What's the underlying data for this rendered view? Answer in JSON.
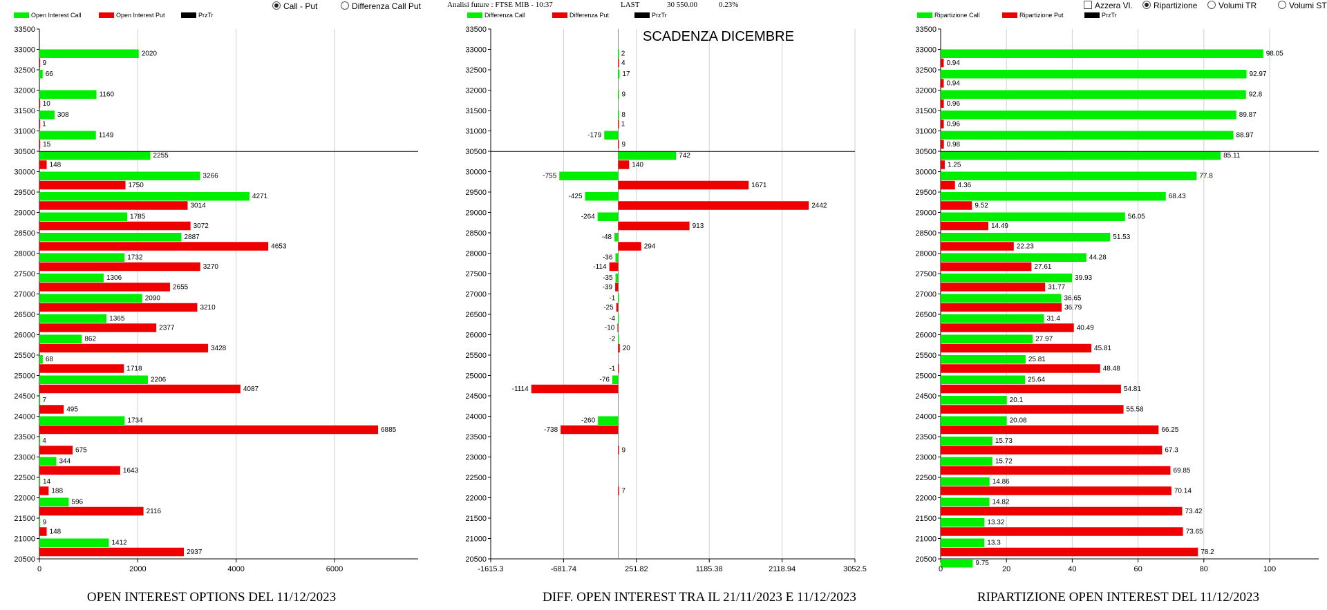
{
  "header": {
    "info_label": "Analisi future : FTSE MIB - 10:37",
    "last_label": "LAST",
    "last_value": "30 550.00",
    "last_change": "0.23%",
    "scadenza": "SCADENZA DICEMBRE"
  },
  "controls": {
    "call_put": "Call - Put",
    "diff_call_put": "Differenza Call Put",
    "azzera": "Azzera Vl.",
    "ripartizione": "Ripartizione",
    "volumi_tr": "Volumi TR",
    "volumi_st": "Volumi ST"
  },
  "colors": {
    "call": "#00ee00",
    "put": "#ee0000",
    "prz": "#000000",
    "grid": "#cfcfcf"
  },
  "strikes": [
    "33500",
    "33000",
    "32500",
    "32000",
    "31500",
    "31000",
    "30500",
    "30000",
    "29500",
    "29000",
    "28500",
    "28000",
    "27500",
    "27000",
    "26500",
    "26000",
    "25500",
    "25000",
    "24500",
    "24000",
    "23500",
    "23000",
    "22500",
    "22000",
    "21500",
    "21000",
    "20500"
  ],
  "chart_data": [
    {
      "type": "bar",
      "orientation": "horizontal",
      "title": "OPEN INTEREST OPTIONS DEL 11/12/2023",
      "legend": [
        "Open Interest Call",
        "Open Interest Put",
        "PrzTr"
      ],
      "xticks": [
        "0",
        "2000",
        "4000",
        "6000"
      ],
      "xlim": [
        0,
        7700
      ],
      "price_line": 30550,
      "series": [
        {
          "name": "Open Interest Call",
          "values": [
            null,
            2020,
            66,
            1160,
            308,
            1149,
            2255,
            3266,
            4271,
            1785,
            2887,
            1732,
            1306,
            2090,
            1365,
            862,
            68,
            2206,
            7,
            1734,
            4,
            344,
            14,
            596,
            9,
            1412,
            null
          ]
        },
        {
          "name": "Open Interest Put",
          "values": [
            null,
            9,
            null,
            10,
            1,
            15,
            148,
            1750,
            3014,
            3072,
            4653,
            3270,
            2655,
            3210,
            2377,
            3428,
            1718,
            4087,
            495,
            6885,
            675,
            1643,
            188,
            2116,
            148,
            2937,
            null
          ]
        }
      ]
    },
    {
      "type": "bar",
      "orientation": "horizontal",
      "title": "DIFF. OPEN INTEREST TRA IL 21/11/2023 E 11/12/2023",
      "legend": [
        "Differenza Call",
        "Differenza Put",
        "PrzTr"
      ],
      "xticks": [
        "-1615.3",
        "-681.74",
        "251.82",
        "1185.38",
        "2118.94",
        "3052.5"
      ],
      "xlim": [
        -1615.3,
        3052.5
      ],
      "price_line": 30550,
      "series": [
        {
          "name": "Differenza Call",
          "values": [
            null,
            2,
            17,
            9,
            8,
            -179,
            742,
            -755,
            -425,
            -264,
            -48,
            -36,
            -35,
            -1,
            -4,
            -2,
            null,
            -76,
            null,
            -260,
            null,
            null,
            null,
            null,
            null,
            null,
            null
          ]
        },
        {
          "name": "Differenza Put",
          "values": [
            null,
            4,
            null,
            null,
            1,
            9,
            140,
            1671,
            2442,
            913,
            294,
            -114,
            -39,
            -25,
            -10,
            20,
            -1,
            -1114,
            null,
            -738,
            9,
            null,
            7,
            null,
            null,
            null,
            null
          ]
        }
      ]
    },
    {
      "type": "bar",
      "orientation": "horizontal",
      "title": "RIPARTIZIONE OPEN INTEREST DEL 11/12/2023",
      "legend": [
        "Ripartizione Call",
        "Ripartizione Put",
        "PrzTr"
      ],
      "xticks": [
        "0",
        "20",
        "40",
        "60",
        "80",
        "100"
      ],
      "xlim": [
        0,
        115
      ],
      "price_line": 30550,
      "series": [
        {
          "name": "Ripartizione Call",
          "values": [
            null,
            98.05,
            92.97,
            92.8,
            89.87,
            88.97,
            85.11,
            77.8,
            68.43,
            56.05,
            51.53,
            44.28,
            39.93,
            36.65,
            31.4,
            27.97,
            25.81,
            25.64,
            20.1,
            20.08,
            15.73,
            15.72,
            14.86,
            14.82,
            13.32,
            13.3,
            9.75
          ]
        },
        {
          "name": "Ripartizione Put",
          "values": [
            null,
            0.94,
            0.94,
            0.96,
            0.96,
            0.98,
            1.25,
            4.36,
            9.52,
            14.49,
            22.23,
            27.61,
            31.77,
            36.79,
            40.49,
            45.81,
            48.48,
            54.81,
            55.58,
            66.25,
            67.3,
            69.85,
            70.14,
            73.42,
            73.65,
            78.2,
            null
          ]
        }
      ]
    }
  ]
}
